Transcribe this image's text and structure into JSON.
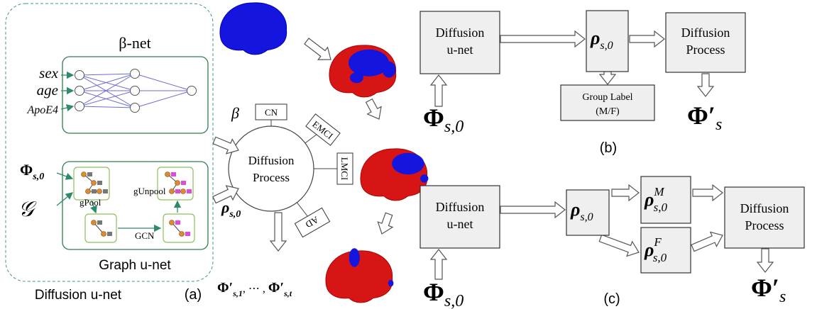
{
  "panel_a": {
    "label": "(a)",
    "outer_label": "Diffusion u-net",
    "beta_net": {
      "title": "β-net",
      "inputs": [
        "sex",
        "age",
        "ApoE4"
      ]
    },
    "graph_unet": {
      "title": "Graph u-net",
      "ops": [
        "gPool",
        "gUnpool",
        "GCN"
      ]
    },
    "phi": {
      "base": "Φ",
      "sub": "s,0"
    },
    "graph": "𝒢",
    "beta": "β",
    "rho": {
      "base": "ρ",
      "sub": "s,0"
    },
    "diffusion": [
      "Diffusion",
      "Process"
    ],
    "stages": [
      "CN",
      "EMCI",
      "LMCI",
      "AD"
    ],
    "outputs": [
      {
        "base": "Φ′",
        "sub": "s,1"
      },
      ", ⋯ , ",
      {
        "base": "Φ′",
        "sub": "s,t"
      }
    ]
  },
  "panel_b": {
    "label": "(b)",
    "unet": [
      "Diffusion",
      "u-net"
    ],
    "rho": {
      "base": "ρ",
      "sub": "s,0"
    },
    "diffusion": [
      "Diffusion",
      "Process"
    ],
    "group": [
      "Group Label",
      "(M/F)"
    ],
    "phi": {
      "base": "Φ",
      "sub": "s,0"
    },
    "phi_out": {
      "base": "Φ′",
      "sub": "s"
    }
  },
  "panel_c": {
    "label": "(c)",
    "unet": [
      "Diffusion",
      "u-net"
    ],
    "rho": {
      "base": "ρ",
      "sub": "s,0"
    },
    "rho_m": {
      "base": "ρ",
      "sup": "M",
      "sub": "s,0"
    },
    "rho_f": {
      "base": "ρ",
      "sup": "F",
      "sub": "s,0"
    },
    "diffusion": [
      "Diffusion",
      "Process"
    ],
    "phi": {
      "base": "Φ",
      "sub": "s,0"
    },
    "phi_out": {
      "base": "Φ′",
      "sub": "s"
    }
  }
}
